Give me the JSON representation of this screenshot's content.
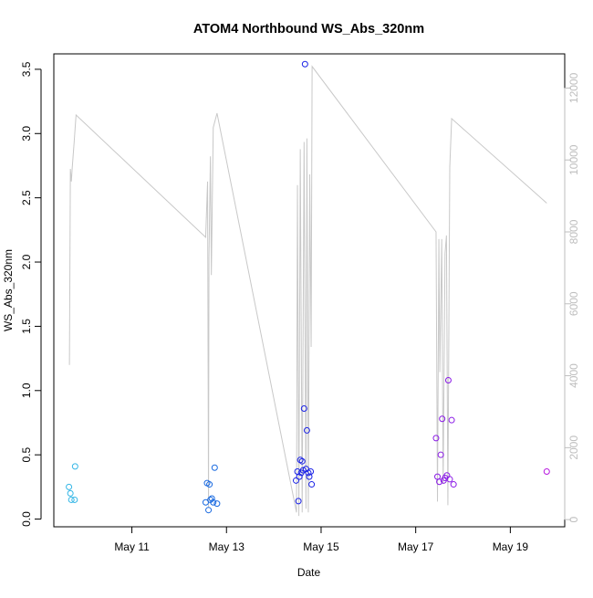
{
  "chart_data": {
    "type": "scatter",
    "title": "ATOM4 Northbound WS_Abs_320nm",
    "xlabel": "Date",
    "ylabel": "WS_Abs_320nm",
    "x_ticks": [
      "May 11",
      "May 13",
      "May 15",
      "May 17",
      "May 19"
    ],
    "x_tick_days": [
      11,
      13,
      15,
      17,
      19
    ],
    "xlim": [
      9.35,
      20.15
    ],
    "y_ticks": [
      "0.0",
      "0.5",
      "1.0",
      "1.5",
      "2.0",
      "2.5",
      "3.0",
      "3.5"
    ],
    "y_tick_values": [
      0,
      0.5,
      1.0,
      1.5,
      2.0,
      2.5,
      3.0,
      3.5
    ],
    "ylim": [
      -0.06,
      3.62
    ],
    "y2_ticks": [
      "0",
      "2000",
      "4000",
      "6000",
      "8000",
      "10000",
      "12000"
    ],
    "y2_tick_values": [
      0,
      2000,
      4000,
      6000,
      8000,
      10000,
      12000
    ],
    "y2lim": [
      -200,
      12950
    ],
    "grid": false,
    "colors": {
      "axis": "#000000",
      "secondary_axis": "#bebebe",
      "line": "#c8c8c8"
    },
    "series": [
      {
        "marker": "open-circle",
        "points": [
          {
            "x": 9.67,
            "y": 0.25,
            "color": "#33b6e6"
          },
          {
            "x": 9.7,
            "y": 0.2,
            "color": "#33b6e6"
          },
          {
            "x": 9.72,
            "y": 0.15,
            "color": "#33b6e6"
          },
          {
            "x": 9.79,
            "y": 0.15,
            "color": "#33b6e6"
          },
          {
            "x": 9.8,
            "y": 0.41,
            "color": "#33b6e6"
          },
          {
            "x": 12.56,
            "y": 0.13,
            "color": "#1a6ae0"
          },
          {
            "x": 12.59,
            "y": 0.28,
            "color": "#1a6ae0"
          },
          {
            "x": 12.62,
            "y": 0.07,
            "color": "#1a6ae0"
          },
          {
            "x": 12.64,
            "y": 0.27,
            "color": "#1a6ae0"
          },
          {
            "x": 12.66,
            "y": 0.15,
            "color": "#1a6ae0"
          },
          {
            "x": 12.69,
            "y": 0.16,
            "color": "#1a6ae0"
          },
          {
            "x": 12.72,
            "y": 0.13,
            "color": "#1a6ae0"
          },
          {
            "x": 12.75,
            "y": 0.4,
            "color": "#1a6ae0"
          },
          {
            "x": 12.8,
            "y": 0.12,
            "color": "#1a6ae0"
          },
          {
            "x": 14.47,
            "y": 0.3,
            "color": "#1a22e6"
          },
          {
            "x": 14.5,
            "y": 0.37,
            "color": "#1a22e6"
          },
          {
            "x": 14.52,
            "y": 0.14,
            "color": "#1a22e6"
          },
          {
            "x": 14.54,
            "y": 0.33,
            "color": "#1a22e6"
          },
          {
            "x": 14.56,
            "y": 0.46,
            "color": "#1a22e6"
          },
          {
            "x": 14.58,
            "y": 0.36,
            "color": "#1a22e6"
          },
          {
            "x": 14.6,
            "y": 0.45,
            "color": "#1a22e6"
          },
          {
            "x": 14.62,
            "y": 0.38,
            "color": "#1a22e6"
          },
          {
            "x": 14.64,
            "y": 0.86,
            "color": "#1a22e6"
          },
          {
            "x": 14.66,
            "y": 3.54,
            "color": "#1a22e6"
          },
          {
            "x": 14.68,
            "y": 0.39,
            "color": "#1a22e6"
          },
          {
            "x": 14.7,
            "y": 0.69,
            "color": "#1a22e6"
          },
          {
            "x": 14.73,
            "y": 0.36,
            "color": "#1a22e6"
          },
          {
            "x": 14.75,
            "y": 0.33,
            "color": "#1a22e6"
          },
          {
            "x": 14.78,
            "y": 0.37,
            "color": "#1a22e6"
          },
          {
            "x": 14.8,
            "y": 0.27,
            "color": "#1a22e6"
          },
          {
            "x": 17.43,
            "y": 0.63,
            "color": "#8a1ae6"
          },
          {
            "x": 17.46,
            "y": 0.33,
            "color": "#8a1ae6"
          },
          {
            "x": 17.5,
            "y": 0.29,
            "color": "#8a1ae6"
          },
          {
            "x": 17.53,
            "y": 0.5,
            "color": "#8a1ae6"
          },
          {
            "x": 17.56,
            "y": 0.78,
            "color": "#8a1ae6"
          },
          {
            "x": 17.59,
            "y": 0.3,
            "color": "#8a1ae6"
          },
          {
            "x": 17.62,
            "y": 0.32,
            "color": "#8a1ae6"
          },
          {
            "x": 17.66,
            "y": 0.34,
            "color": "#8a1ae6"
          },
          {
            "x": 17.69,
            "y": 1.08,
            "color": "#8a1ae6"
          },
          {
            "x": 17.72,
            "y": 0.31,
            "color": "#8a1ae6"
          },
          {
            "x": 17.76,
            "y": 0.77,
            "color": "#8a1ae6"
          },
          {
            "x": 17.8,
            "y": 0.27,
            "color": "#8a1ae6"
          },
          {
            "x": 19.77,
            "y": 0.37,
            "color": "#b81ae0"
          }
        ]
      }
    ],
    "secondary_line": {
      "axis": "y2",
      "points": [
        [
          9.68,
          4300
        ],
        [
          9.7,
          9750
        ],
        [
          9.72,
          9400
        ],
        [
          9.74,
          9800
        ],
        [
          9.78,
          10500
        ],
        [
          9.82,
          11250
        ],
        [
          12.56,
          7850
        ],
        [
          12.6,
          9400
        ],
        [
          12.62,
          350
        ],
        [
          12.63,
          7300
        ],
        [
          12.66,
          10100
        ],
        [
          12.68,
          6800
        ],
        [
          12.72,
          10900
        ],
        [
          12.8,
          11300
        ],
        [
          14.48,
          200
        ],
        [
          14.5,
          9300
        ],
        [
          14.53,
          100
        ],
        [
          14.56,
          10300
        ],
        [
          14.6,
          200
        ],
        [
          14.64,
          10500
        ],
        [
          14.68,
          300
        ],
        [
          14.7,
          10600
        ],
        [
          14.73,
          200
        ],
        [
          14.76,
          9600
        ],
        [
          14.79,
          4800
        ],
        [
          14.81,
          12600
        ],
        [
          17.43,
          8000
        ],
        [
          17.46,
          500
        ],
        [
          17.49,
          7800
        ],
        [
          17.51,
          4100
        ],
        [
          17.55,
          7800
        ],
        [
          17.58,
          1000
        ],
        [
          17.62,
          7400
        ],
        [
          17.65,
          7900
        ],
        [
          17.68,
          400
        ],
        [
          17.72,
          9800
        ],
        [
          17.76,
          11150
        ],
        [
          19.77,
          8800
        ]
      ]
    }
  }
}
